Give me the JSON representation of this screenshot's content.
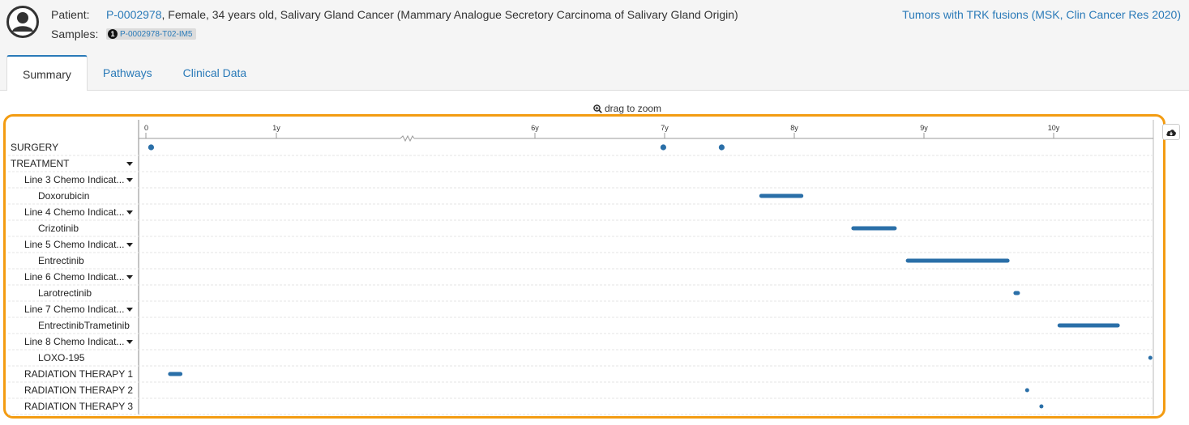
{
  "header": {
    "patient_label": "Patient:",
    "patient_id": "P-0002978",
    "patient_details": ", Female, 34 years old, Salivary Gland Cancer (Mammary Analogue Secretory Carcinoma of Salivary Gland Origin)",
    "samples_label": "Samples:",
    "sample_number": "1",
    "sample_id": "P-0002978-T02-IM5",
    "study_link": "Tumors with TRK fusions (MSK, Clin Cancer Res 2020)"
  },
  "tabs": [
    {
      "label": "Summary",
      "active": true
    },
    {
      "label": "Pathways",
      "active": false
    },
    {
      "label": "Clinical Data",
      "active": false
    }
  ],
  "timeline": {
    "zoom_hint": "drag to zoom",
    "ticks": [
      {
        "label": "0",
        "year": 0
      },
      {
        "label": "1y",
        "year": 1
      },
      {
        "label": "6y",
        "year": 6
      },
      {
        "label": "7y",
        "year": 7
      },
      {
        "label": "8y",
        "year": 8
      },
      {
        "label": "9y",
        "year": 9
      },
      {
        "label": "10y",
        "year": 10
      }
    ],
    "rows": [
      {
        "label": "SURGERY",
        "indent": 0,
        "caret": false,
        "events": [
          {
            "type": "point",
            "year": 0.04
          },
          {
            "type": "point",
            "year": 6.99
          },
          {
            "type": "point",
            "year": 7.44
          }
        ]
      },
      {
        "label": "TREATMENT",
        "indent": 0,
        "caret": true,
        "events": []
      },
      {
        "label": "Line 3 Chemo Indicat...",
        "indent": 1,
        "caret": true,
        "events": []
      },
      {
        "label": "Doxorubicin",
        "indent": 2,
        "caret": false,
        "events": [
          {
            "type": "range",
            "start": 7.73,
            "end": 8.07
          }
        ]
      },
      {
        "label": "Line 4 Chemo Indicat...",
        "indent": 1,
        "caret": true,
        "events": []
      },
      {
        "label": "Crizotinib",
        "indent": 2,
        "caret": false,
        "events": [
          {
            "type": "range",
            "start": 8.44,
            "end": 8.79
          }
        ]
      },
      {
        "label": "Line 5 Chemo Indicat...",
        "indent": 1,
        "caret": true,
        "events": []
      },
      {
        "label": "Entrectinib",
        "indent": 2,
        "caret": false,
        "events": [
          {
            "type": "range",
            "start": 8.86,
            "end": 9.66
          }
        ]
      },
      {
        "label": "Line 6 Chemo Indicat...",
        "indent": 1,
        "caret": true,
        "events": []
      },
      {
        "label": "Larotrectinib",
        "indent": 2,
        "caret": false,
        "events": [
          {
            "type": "range",
            "start": 9.69,
            "end": 9.74
          }
        ]
      },
      {
        "label": "Line 7 Chemo Indicat...",
        "indent": 1,
        "caret": true,
        "events": []
      },
      {
        "label": "EntrectinibTrametinib",
        "indent": 2,
        "caret": false,
        "events": [
          {
            "type": "range",
            "start": 10.03,
            "end": 10.51
          }
        ]
      },
      {
        "label": "Line 8 Chemo Indicat...",
        "indent": 1,
        "caret": true,
        "events": []
      },
      {
        "label": "LOXO-195",
        "indent": 2,
        "caret": false,
        "events": [
          {
            "type": "range",
            "start": 10.73,
            "end": 10.76
          }
        ]
      },
      {
        "label": "RADIATION THERAPY 1",
        "indent": 1,
        "caret": false,
        "events": [
          {
            "type": "range",
            "start": 0.17,
            "end": 0.28
          }
        ]
      },
      {
        "label": "RADIATION THERAPY 2",
        "indent": 1,
        "caret": false,
        "events": [
          {
            "type": "range",
            "start": 9.78,
            "end": 9.81
          }
        ]
      },
      {
        "label": "RADIATION THERAPY 3",
        "indent": 1,
        "caret": false,
        "events": [
          {
            "type": "range",
            "start": 9.89,
            "end": 9.92
          }
        ]
      }
    ],
    "colors": {
      "event": "#2a6fa8",
      "frame": "#f39c12",
      "link": "#2a7ab8"
    }
  }
}
